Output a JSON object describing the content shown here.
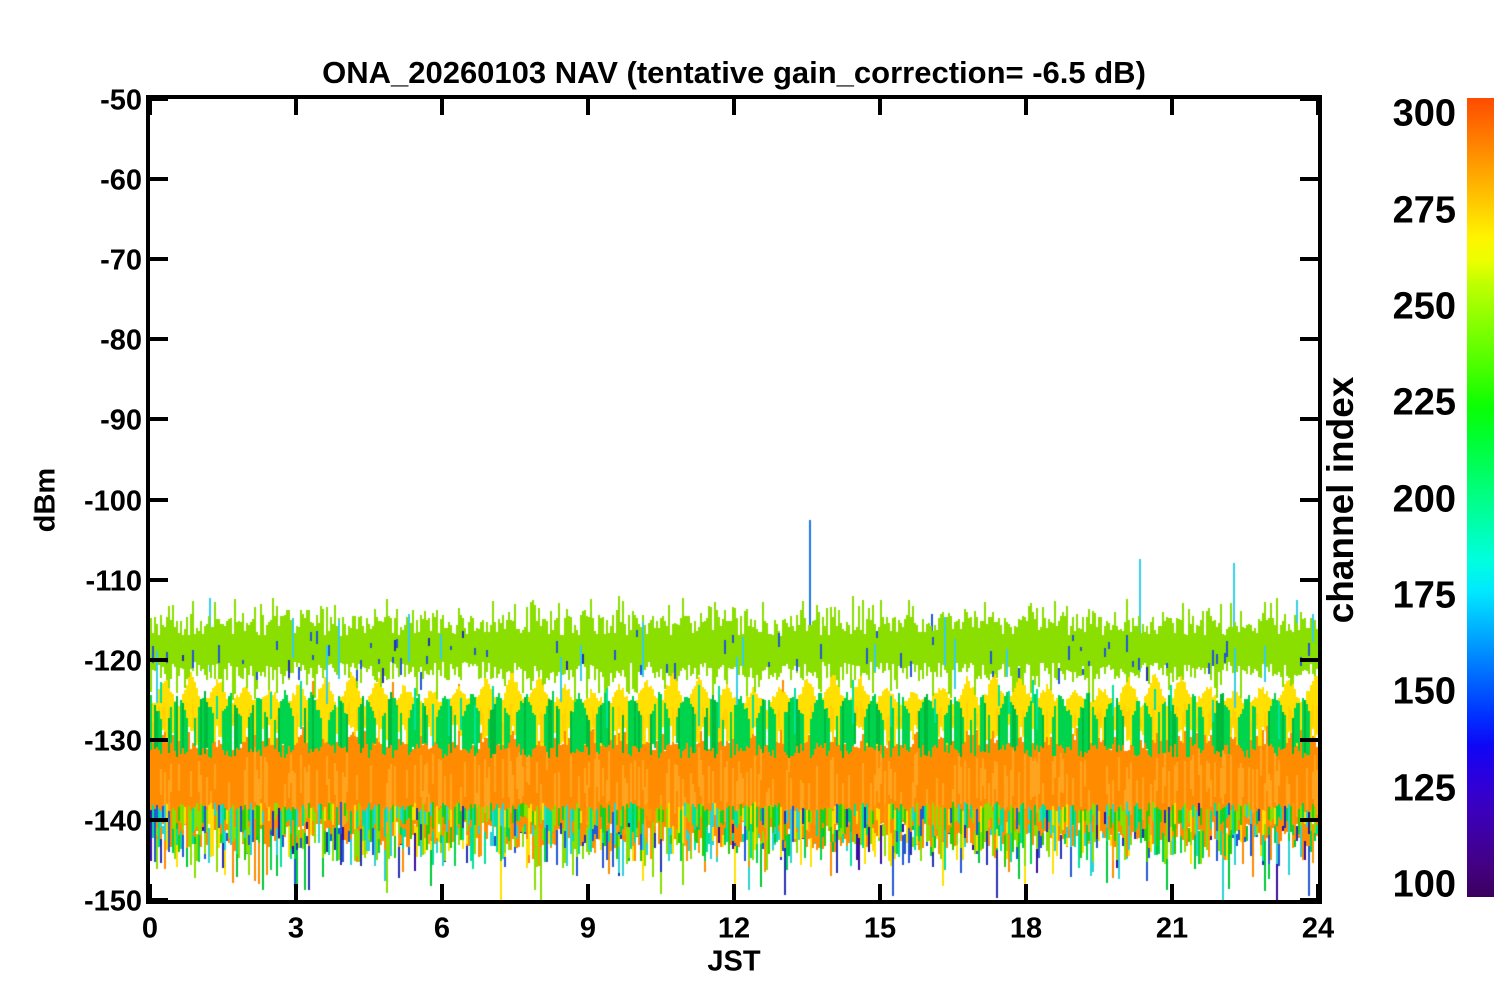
{
  "page": {
    "background": "#FFFFFF"
  },
  "chart_data": {
    "type": "line",
    "title": "ONA_20260103 NAV (tentative gain_correction= -6.5 dB)",
    "xlabel": "JST",
    "ylabel": "dBm",
    "xlim": [
      0,
      24
    ],
    "ylim": [
      -150,
      -50
    ],
    "xticks": [
      0,
      3,
      6,
      9,
      12,
      15,
      18,
      21,
      24
    ],
    "yticks": [
      -50,
      -60,
      -70,
      -80,
      -90,
      -100,
      -110,
      -120,
      -130,
      -140,
      -150
    ],
    "grid": false,
    "axis_color": "#000000",
    "legend_position": "none",
    "colorbar": {
      "title": "channel index",
      "ticks": [
        300,
        275,
        250,
        225,
        200,
        175,
        150,
        125,
        100
      ],
      "value_range": [
        96.9,
        304.2
      ],
      "stops": [
        [
          97,
          "#3A005E"
        ],
        [
          104,
          "#43007E"
        ],
        [
          112,
          "#3F009F"
        ],
        [
          120,
          "#3A00BF"
        ],
        [
          128,
          "#2B00DE"
        ],
        [
          136,
          "#0E06F5"
        ],
        [
          144,
          "#0031FF"
        ],
        [
          152,
          "#005EFF"
        ],
        [
          160,
          "#008CFF"
        ],
        [
          168,
          "#00BAFF"
        ],
        [
          176,
          "#00E8FF"
        ],
        [
          184,
          "#00FFE0"
        ],
        [
          192,
          "#00FFB4"
        ],
        [
          200,
          "#00FF88"
        ],
        [
          208,
          "#00FF5C"
        ],
        [
          216,
          "#00FF30"
        ],
        [
          224,
          "#0AFF04"
        ],
        [
          232,
          "#3CFF00"
        ],
        [
          240,
          "#68FF00"
        ],
        [
          248,
          "#94FF00"
        ],
        [
          256,
          "#C0FF00"
        ],
        [
          262,
          "#ECFF00"
        ],
        [
          268,
          "#FFF400"
        ],
        [
          274,
          "#FFD800"
        ],
        [
          280,
          "#FFBC00"
        ],
        [
          286,
          "#FFA000"
        ],
        [
          292,
          "#FF8400"
        ],
        [
          298,
          "#FF6800"
        ],
        [
          304,
          "#FF4C00"
        ]
      ]
    },
    "bands": {
      "chartreuse_band": {
        "label": "noise band ch ~235-245",
        "color": "#8ADE00",
        "dbm_top": -113,
        "dbm_bottom": -123,
        "center_dbm": -118
      },
      "yellow_wavy": {
        "label": "oscillating band ch ~260-270",
        "color": "#FFE000",
        "color_alt": "#FFD200",
        "dbm_top": -121.5,
        "dbm_bottom": -131,
        "period_hours": 0.55
      },
      "green_wavy": {
        "label": "oscillating band ch ~215-225",
        "color": "#00D44C",
        "color_alt": "#00BA3C",
        "dbm_top": -123.5,
        "dbm_bottom": -132.5,
        "period_hours": 0.55
      },
      "orange_band": {
        "label": "dense band ch ~290-300",
        "color": "#FF8C00",
        "color_alt": "#FFA41E",
        "dbm_top": -128.5,
        "dbm_bottom": -143.5,
        "center_dbm": -135
      },
      "bottom_fringe": {
        "label": "mixed channel floor",
        "dbm_top": -139.5,
        "dbm_bottom": -147.5,
        "palette": [
          [
            "#8ADE00",
            0.26
          ],
          [
            "#2ECC00",
            0.14
          ],
          [
            "#00D44C",
            0.1
          ],
          [
            "#00E29B",
            0.12
          ],
          [
            "#2BD3D3",
            0.1
          ],
          [
            "#FFE000",
            0.12
          ],
          [
            "#FF9A00",
            0.08
          ],
          [
            "#2158D6",
            0.05
          ],
          [
            "#2230B4",
            0.02
          ],
          [
            "#3A0D9E",
            0.01
          ]
        ]
      },
      "deep_spikes": {
        "label": "low channel spikes",
        "dbm_top": -140.5,
        "dbm_bottom": -150,
        "palette": [
          [
            "#2158D6",
            0.2
          ],
          [
            "#2230B4",
            0.12
          ],
          [
            "#3A0D9E",
            0.08
          ],
          [
            "#2BD3D3",
            0.15
          ],
          [
            "#00C838",
            0.15
          ],
          [
            "#8ADE00",
            0.1
          ],
          [
            "#FFE000",
            0.12
          ],
          [
            "#FF8C00",
            0.08
          ]
        ]
      },
      "blue_dashes": {
        "label": "short dashes ch ~150-165",
        "color": "#2158D6",
        "color_alt": "#2230B4",
        "dbm_top": -116,
        "dbm_bottom": -122
      },
      "teal_strands": {
        "color": "#00E29B",
        "dbm_top": -122.5,
        "dbm_bottom": -134
      },
      "cyan_strands": {
        "color": "#35CFE8",
        "dbm_top": -113.5,
        "dbm_bottom": -136
      }
    },
    "notable_spikes": [
      {
        "t_hours": 1.22,
        "top_dbm": -112.3,
        "color": "#35CFE8"
      },
      {
        "t_hours": 9.62,
        "top_dbm": -112.0,
        "color": "#8ADE00"
      },
      {
        "t_hours": 13.55,
        "top_dbm": -102.6,
        "color": "#1E78E1"
      },
      {
        "t_hours": 16.05,
        "top_dbm": -114.3,
        "color": "#2158D6"
      },
      {
        "t_hours": 20.33,
        "top_dbm": -107.4,
        "color": "#35CFE8"
      },
      {
        "t_hours": 22.25,
        "top_dbm": -107.9,
        "color": "#35CFE8"
      },
      {
        "t_hours": 23.55,
        "top_dbm": -112.6,
        "color": "#35CFE8"
      }
    ]
  }
}
